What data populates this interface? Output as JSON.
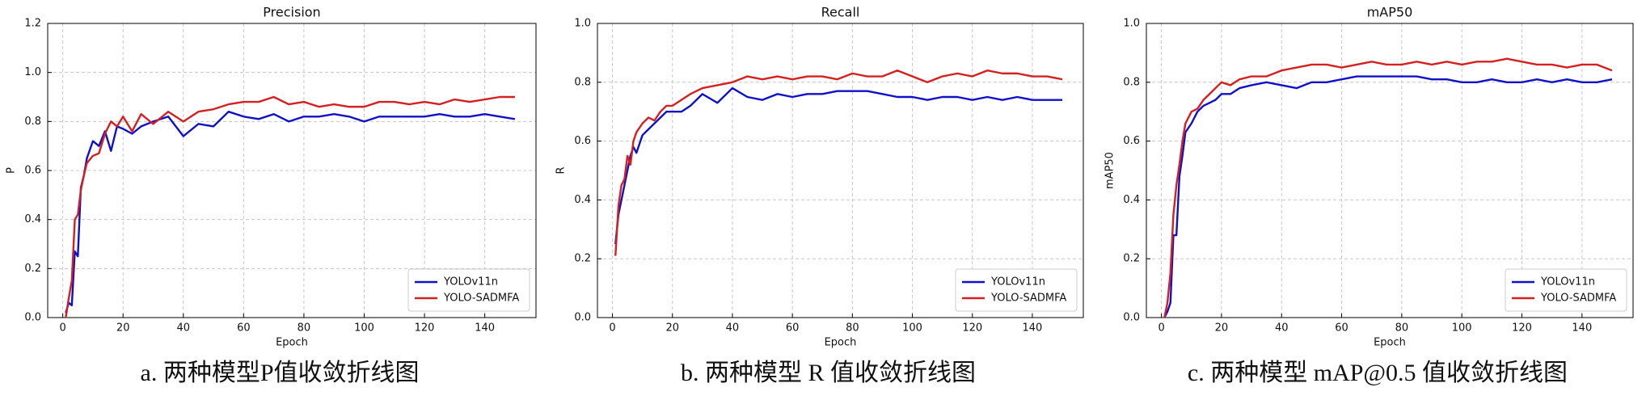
{
  "chart_data": [
    {
      "type": "line",
      "title": "Precision",
      "xlabel": "Epoch",
      "ylabel": "P",
      "caption": "a. 两种模型P值收敛折线图",
      "x": [
        1,
        2,
        3,
        4,
        5,
        6,
        7,
        8,
        10,
        12,
        14,
        16,
        18,
        20,
        23,
        26,
        30,
        35,
        40,
        45,
        50,
        55,
        60,
        65,
        70,
        75,
        80,
        85,
        90,
        95,
        100,
        105,
        110,
        115,
        120,
        125,
        130,
        135,
        140,
        145,
        150
      ],
      "series": [
        {
          "name": "YOLOv11n",
          "color": "#1010c8",
          "values": [
            0.02,
            0.06,
            0.05,
            0.27,
            0.25,
            0.53,
            0.58,
            0.65,
            0.72,
            0.7,
            0.76,
            0.68,
            0.78,
            0.77,
            0.75,
            0.78,
            0.8,
            0.82,
            0.74,
            0.79,
            0.78,
            0.84,
            0.82,
            0.81,
            0.83,
            0.8,
            0.82,
            0.82,
            0.83,
            0.82,
            0.8,
            0.82,
            0.82,
            0.82,
            0.82,
            0.83,
            0.82,
            0.82,
            0.83,
            0.82,
            0.81
          ]
        },
        {
          "name": "YOLO-SADMFA",
          "color": "#d42020",
          "values": [
            0.0,
            0.08,
            0.15,
            0.4,
            0.42,
            0.52,
            0.58,
            0.63,
            0.66,
            0.67,
            0.75,
            0.8,
            0.78,
            0.82,
            0.76,
            0.83,
            0.79,
            0.84,
            0.8,
            0.84,
            0.85,
            0.87,
            0.88,
            0.88,
            0.9,
            0.87,
            0.88,
            0.86,
            0.87,
            0.86,
            0.86,
            0.88,
            0.88,
            0.87,
            0.88,
            0.87,
            0.89,
            0.88,
            0.89,
            0.9,
            0.9
          ]
        }
      ],
      "xlim": [
        -5,
        157
      ],
      "xticks": [
        0,
        20,
        40,
        60,
        80,
        100,
        120,
        140
      ],
      "ylim": [
        0,
        1.2
      ],
      "yticks": [
        {
          "value": 0,
          "label": "0.0"
        },
        0.2,
        0.4,
        0.6,
        0.8,
        {
          "value": 1,
          "label": "1.0"
        },
        1.2
      ],
      "grid": true,
      "legend": "lower right"
    },
    {
      "type": "line",
      "title": "Recall",
      "xlabel": "Epoch",
      "ylabel": "R",
      "caption": "b. 两种模型 R 值收敛折线图",
      "x": [
        1,
        2,
        3,
        4,
        5,
        6,
        7,
        8,
        10,
        12,
        14,
        16,
        18,
        20,
        23,
        26,
        30,
        35,
        40,
        45,
        50,
        55,
        60,
        65,
        70,
        75,
        80,
        85,
        90,
        95,
        100,
        105,
        110,
        115,
        120,
        125,
        130,
        135,
        140,
        145,
        150
      ],
      "series": [
        {
          "name": "YOLOv11n",
          "color": "#1010c8",
          "values": [
            0.25,
            0.35,
            0.4,
            0.45,
            0.5,
            0.55,
            0.58,
            0.56,
            0.62,
            0.64,
            0.66,
            0.68,
            0.7,
            0.7,
            0.7,
            0.72,
            0.76,
            0.73,
            0.78,
            0.75,
            0.74,
            0.76,
            0.75,
            0.76,
            0.76,
            0.77,
            0.77,
            0.77,
            0.76,
            0.75,
            0.75,
            0.74,
            0.75,
            0.75,
            0.74,
            0.75,
            0.74,
            0.75,
            0.74,
            0.74,
            0.74
          ]
        },
        {
          "name": "YOLO-SADMFA",
          "color": "#d42020",
          "values": [
            0.21,
            0.38,
            0.45,
            0.47,
            0.55,
            0.52,
            0.6,
            0.63,
            0.66,
            0.68,
            0.67,
            0.7,
            0.72,
            0.72,
            0.74,
            0.76,
            0.78,
            0.79,
            0.8,
            0.82,
            0.81,
            0.82,
            0.81,
            0.82,
            0.82,
            0.81,
            0.83,
            0.82,
            0.82,
            0.84,
            0.82,
            0.8,
            0.82,
            0.83,
            0.82,
            0.84,
            0.83,
            0.83,
            0.82,
            0.82,
            0.81
          ]
        }
      ],
      "xlim": [
        -5,
        157
      ],
      "xticks": [
        0,
        20,
        40,
        60,
        80,
        100,
        120,
        140
      ],
      "ylim": [
        0,
        1
      ],
      "yticks": [
        {
          "value": 0,
          "label": "0.0"
        },
        0.2,
        0.4,
        0.6,
        0.8,
        {
          "value": 1,
          "label": "1.0"
        }
      ],
      "grid": true,
      "legend": "lower right"
    },
    {
      "type": "line",
      "title": "mAP50",
      "xlabel": "Epoch",
      "ylabel": "mAP50",
      "caption": "c. 两种模型 mAP@0.5 值收敛折线图",
      "x": [
        1,
        2,
        3,
        4,
        5,
        6,
        7,
        8,
        10,
        12,
        14,
        16,
        18,
        20,
        23,
        26,
        30,
        35,
        40,
        45,
        50,
        55,
        60,
        65,
        70,
        75,
        80,
        85,
        90,
        95,
        100,
        105,
        110,
        115,
        120,
        125,
        130,
        135,
        140,
        145,
        150
      ],
      "series": [
        {
          "name": "YOLOv11n",
          "color": "#1010c8",
          "values": [
            0.0,
            0.02,
            0.05,
            0.28,
            0.28,
            0.48,
            0.55,
            0.63,
            0.66,
            0.7,
            0.72,
            0.73,
            0.74,
            0.76,
            0.76,
            0.78,
            0.79,
            0.8,
            0.79,
            0.78,
            0.8,
            0.8,
            0.81,
            0.82,
            0.82,
            0.82,
            0.82,
            0.82,
            0.81,
            0.81,
            0.8,
            0.8,
            0.81,
            0.8,
            0.8,
            0.81,
            0.8,
            0.81,
            0.8,
            0.8,
            0.81
          ]
        },
        {
          "name": "YOLO-SADMFA",
          "color": "#d42020",
          "values": [
            0.0,
            0.05,
            0.15,
            0.35,
            0.45,
            0.52,
            0.6,
            0.66,
            0.7,
            0.71,
            0.74,
            0.76,
            0.78,
            0.8,
            0.79,
            0.81,
            0.82,
            0.82,
            0.84,
            0.85,
            0.86,
            0.86,
            0.85,
            0.86,
            0.87,
            0.86,
            0.86,
            0.87,
            0.86,
            0.87,
            0.86,
            0.87,
            0.87,
            0.88,
            0.87,
            0.86,
            0.86,
            0.85,
            0.86,
            0.86,
            0.84
          ]
        }
      ],
      "xlim": [
        -5,
        157
      ],
      "xticks": [
        0,
        20,
        40,
        60,
        80,
        100,
        120,
        140
      ],
      "ylim": [
        0,
        1
      ],
      "yticks": [
        {
          "value": 0,
          "label": "0.0"
        },
        0.2,
        0.4,
        0.6,
        0.8,
        {
          "value": 1,
          "label": "1.0"
        }
      ],
      "grid": true,
      "legend": "lower right"
    }
  ]
}
